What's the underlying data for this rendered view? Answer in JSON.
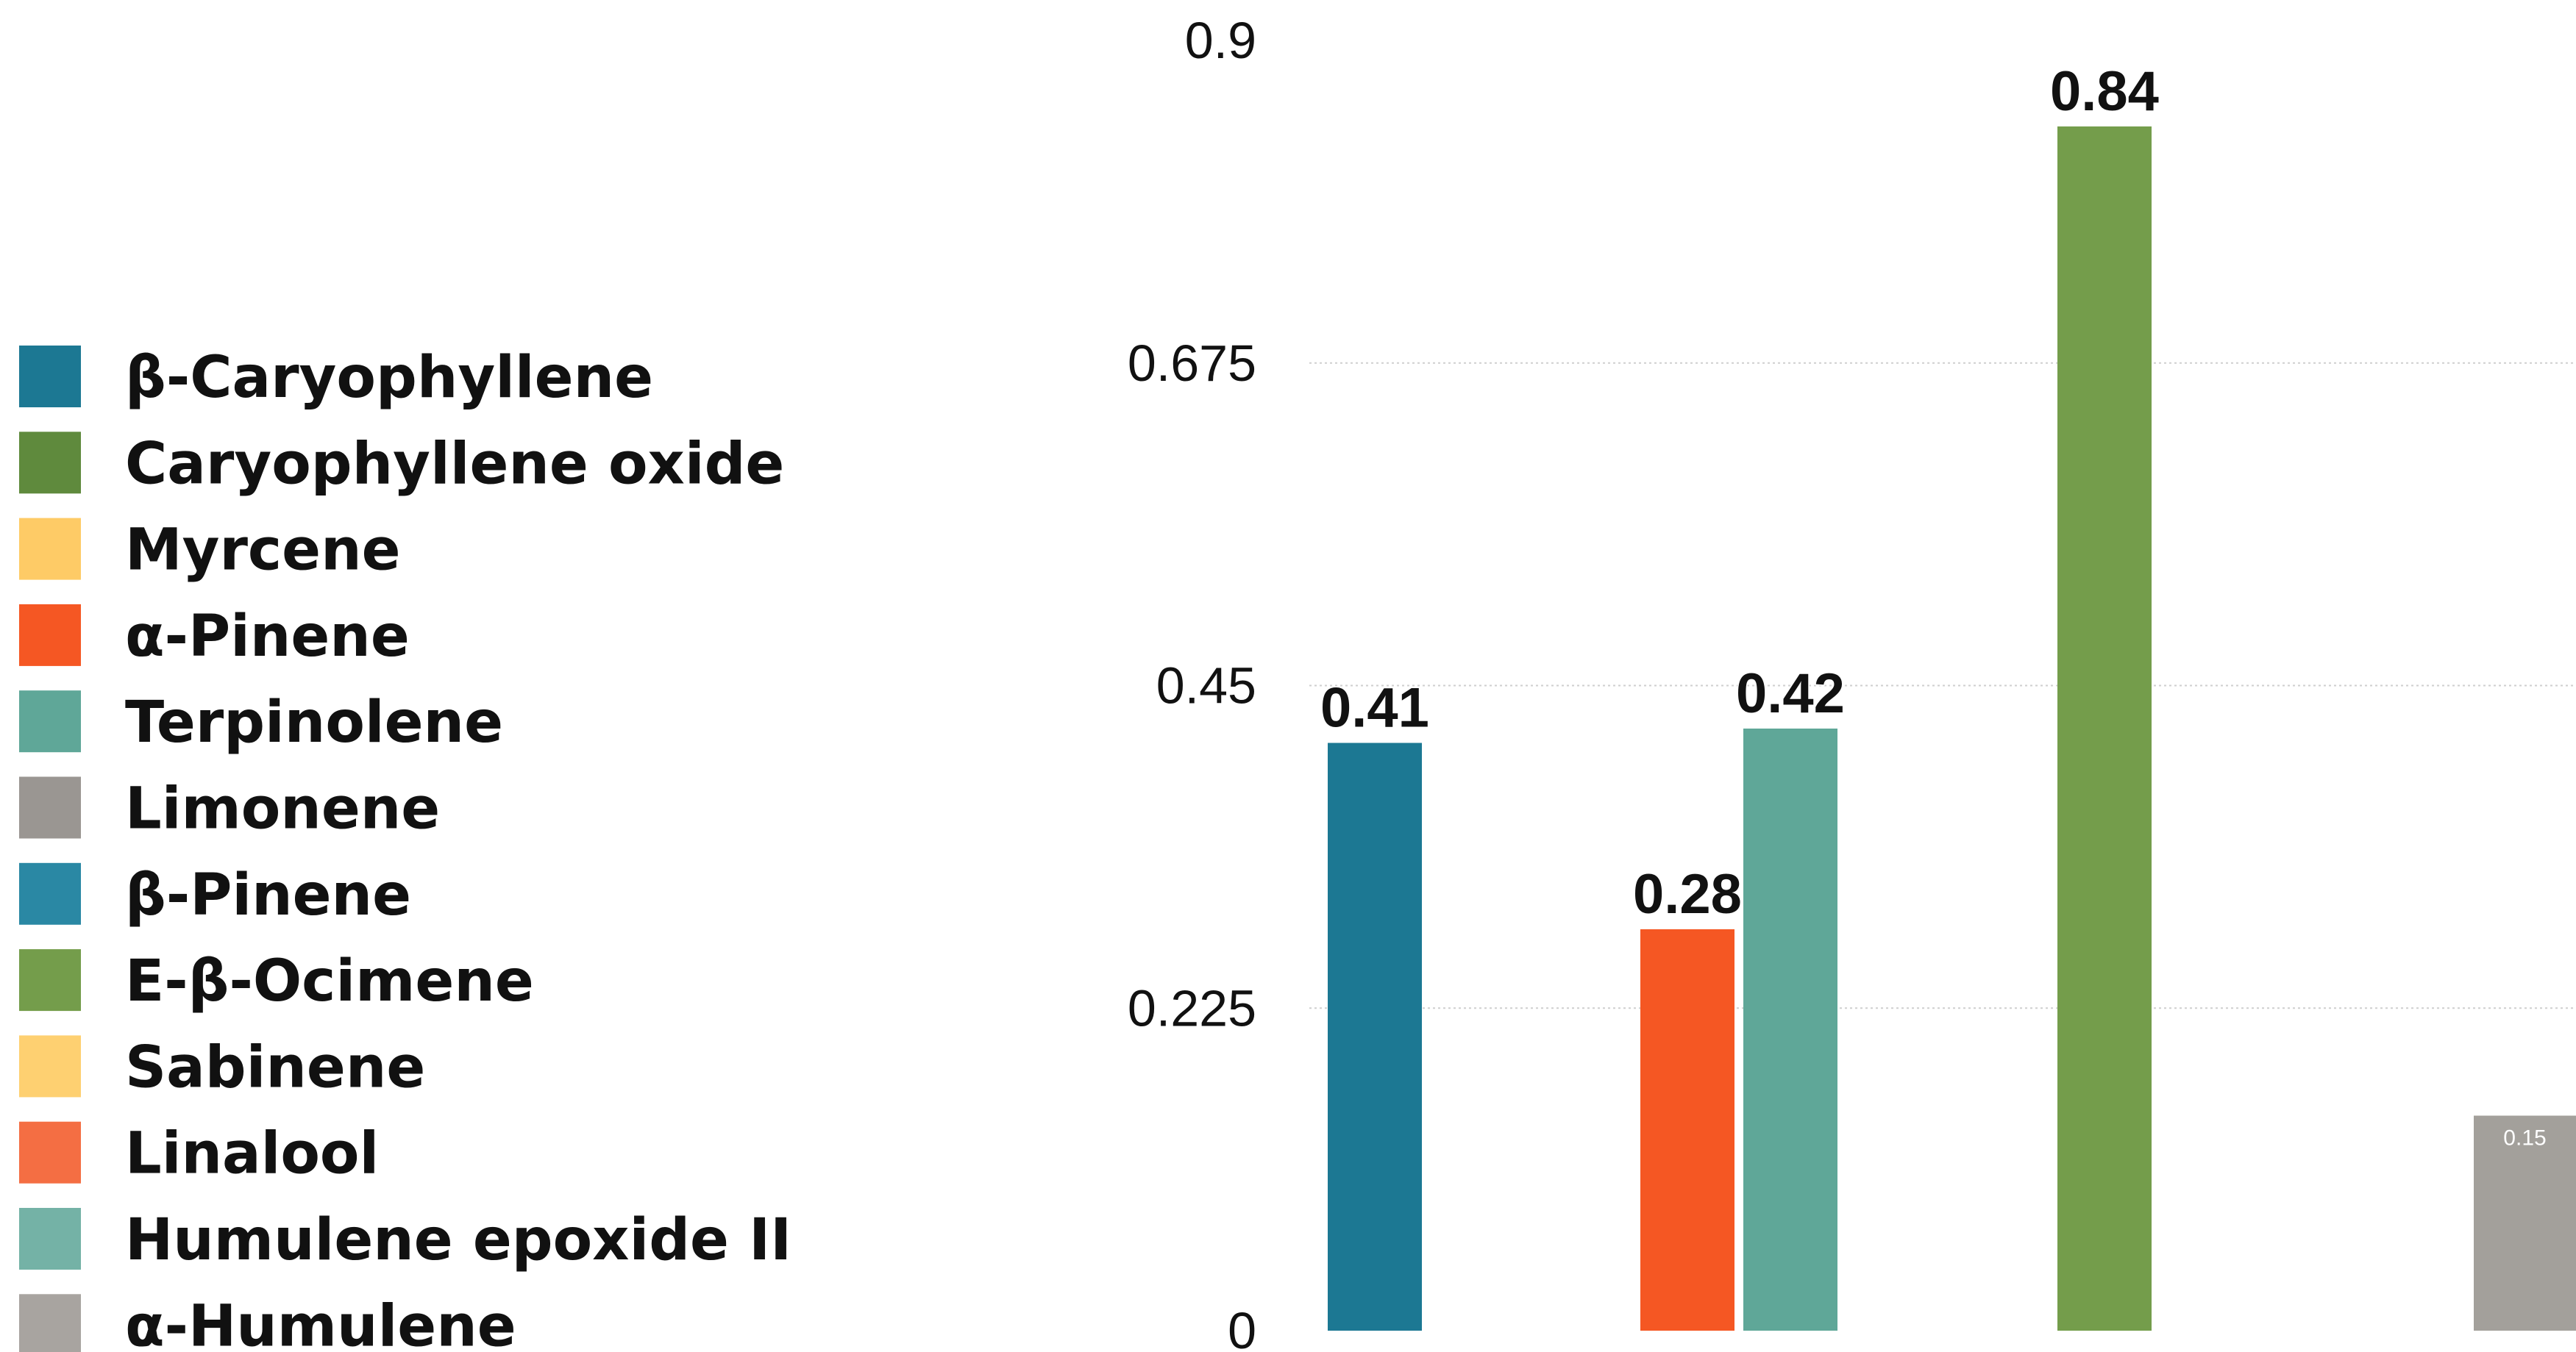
{
  "chart_data": {
    "type": "bar",
    "title": "",
    "xlabel": "",
    "ylabel": "",
    "ylim": [
      0,
      0.9
    ],
    "y_ticks": [
      "0",
      "0.225",
      "0.45",
      "0.675",
      "0.9"
    ],
    "grid": true,
    "legend_position": "left",
    "legend": [
      {
        "name": "β-Caryophyllene",
        "color": "#1c7893"
      },
      {
        "name": "Caryophyllene oxide",
        "color": "#5f8a3d"
      },
      {
        "name": "Myrcene",
        "color": "#fecb66"
      },
      {
        "name": "α-Pinene",
        "color": "#f55723"
      },
      {
        "name": "Terpinolene",
        "color": "#5fa798"
      },
      {
        "name": "Limonene",
        "color": "#9a9692"
      },
      {
        "name": "β-Pinene",
        "color": "#2a88a4"
      },
      {
        "name": "E-β-Ocimene",
        "color": "#749d4b"
      },
      {
        "name": "Sabinene",
        "color": "#fed071"
      },
      {
        "name": "Linalool",
        "color": "#f46e43"
      },
      {
        "name": "Humulene epoxide II",
        "color": "#74b2a6"
      },
      {
        "name": "α-Humulene",
        "color": "#a8a4a0"
      }
    ],
    "bars": [
      {
        "series": "β-Caryophyllene",
        "value": 0.41,
        "label": "0.41",
        "color": "#1c7893",
        "label_style": "large"
      },
      {
        "series": "α-Pinene",
        "value": 0.28,
        "label": "0.28",
        "color": "#f55723",
        "label_style": "large"
      },
      {
        "series": "Terpinolene",
        "value": 0.42,
        "label": "0.42",
        "color": "#5fa798",
        "label_style": "large"
      },
      {
        "series": "E-β-Ocimene",
        "value": 0.84,
        "label": "0.84",
        "color": "#749d4b",
        "label_style": "large"
      },
      {
        "series": "Limonene",
        "value": 0.15,
        "label": "0.15",
        "color": "#a3a09b",
        "label_style": "small"
      }
    ]
  }
}
